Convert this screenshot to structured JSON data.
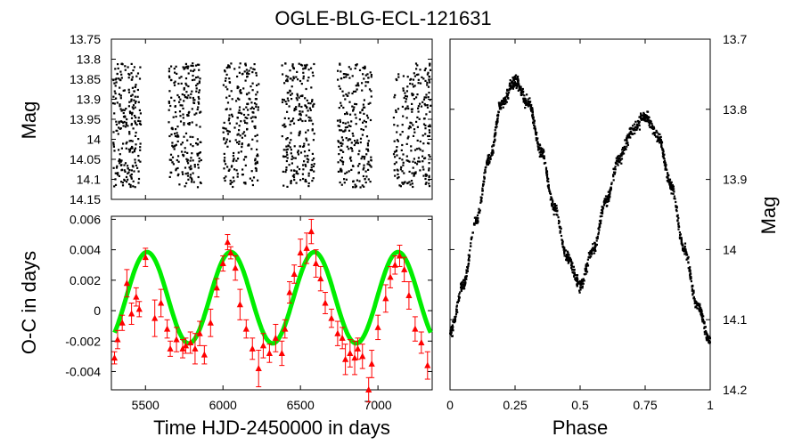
{
  "chart_data": [
    {
      "panel": "top-left",
      "type": "scatter",
      "title": "OGLE-BLG-ECL-121631",
      "xlabel": "",
      "ylabel": "Mag",
      "xlim": [
        5280,
        7350
      ],
      "ylim": [
        14.15,
        13.75
      ],
      "yticks": [
        "13.75",
        "13.8",
        "13.85",
        "13.9",
        "13.95",
        "14",
        "14.05",
        "14.1",
        "14.15"
      ],
      "observing_seasons": [
        [
          5290,
          5470
        ],
        [
          5650,
          5860
        ],
        [
          6000,
          6230
        ],
        [
          6380,
          6590
        ],
        [
          6740,
          6960
        ],
        [
          7100,
          7340
        ]
      ],
      "mag_range": [
        13.81,
        14.12
      ],
      "series": [
        {
          "name": "photometry",
          "color": "#000000"
        }
      ]
    },
    {
      "panel": "bottom-left",
      "type": "scatter",
      "xlabel": "Time HJD-2450000 in days",
      "ylabel": "O-C in days",
      "xlim": [
        5280,
        7350
      ],
      "ylim": [
        -0.0052,
        0.0062
      ],
      "xticks": [
        "5500",
        "6000",
        "6500",
        "7000"
      ],
      "yticks": [
        "-0.004",
        "-0.002",
        "0",
        "0.002",
        "0.004",
        "0.006"
      ],
      "series": [
        {
          "name": "O-C measurements",
          "color": "#ff0000",
          "marker": "triangle",
          "x": [
            5300,
            5320,
            5350,
            5380,
            5410,
            5440,
            5460,
            5500,
            5560,
            5600,
            5640,
            5660,
            5700,
            5740,
            5760,
            5790,
            5820,
            5850,
            5880,
            5920,
            5960,
            6000,
            6030,
            6050,
            6080,
            6110,
            6150,
            6190,
            6230,
            6260,
            6300,
            6340,
            6380,
            6400,
            6430,
            6460,
            6500,
            6540,
            6570,
            6600,
            6630,
            6660,
            6700,
            6740,
            6770,
            6790,
            6820,
            6850,
            6870,
            6900,
            6940,
            6960,
            7000,
            7050,
            7080,
            7110,
            7140,
            7170,
            7200,
            7240,
            7280,
            7320
          ],
          "y": [
            -0.0031,
            -0.0019,
            -0.0008,
            0.0018,
            -0.0002,
            0.0009,
            0.0001,
            0.0035,
            -0.0005,
            0.0005,
            -0.0012,
            -0.0025,
            -0.0019,
            -0.0025,
            -0.0023,
            -0.0021,
            -0.0025,
            -0.0015,
            -0.0029,
            -0.0008,
            0.0015,
            0.0031,
            0.0045,
            0.0038,
            0.0028,
            0.0004,
            -0.0012,
            -0.0025,
            -0.0038,
            -0.0023,
            -0.0028,
            -0.0018,
            -0.0028,
            -0.0012,
            0.0012,
            0.0024,
            0.0038,
            0.0041,
            0.0052,
            0.0031,
            0.0021,
            0.0005,
            -0.0005,
            -0.0015,
            -0.0018,
            -0.0032,
            -0.0028,
            -0.0031,
            -0.0025,
            -0.003,
            -0.0052,
            -0.0035,
            -0.0011,
            0.0008,
            0.0022,
            0.003,
            0.0036,
            0.0027,
            0.001,
            -0.0012,
            -0.0021,
            -0.0036
          ],
          "err": [
            0.0004,
            0.0006,
            0.0005,
            0.0009,
            0.0007,
            0.0006,
            0.0005,
            0.0006,
            0.0012,
            0.0009,
            0.0006,
            0.0005,
            0.0008,
            0.0006,
            0.0005,
            0.0007,
            0.001,
            0.0008,
            0.0006,
            0.0009,
            0.0006,
            0.0005,
            0.0005,
            0.0004,
            0.0008,
            0.001,
            0.0006,
            0.0007,
            0.0012,
            0.0008,
            0.0006,
            0.0009,
            0.0008,
            0.0006,
            0.0007,
            0.0006,
            0.0009,
            0.001,
            0.0008,
            0.0009,
            0.0008,
            0.0007,
            0.0006,
            0.0008,
            0.0007,
            0.001,
            0.0009,
            0.0011,
            0.0007,
            0.0008,
            0.0008,
            0.0009,
            0.0008,
            0.0009,
            0.0007,
            0.0006,
            0.0007,
            0.0008,
            0.0009,
            0.0008,
            0.0007,
            0.0009
          ]
        },
        {
          "name": "fit",
          "color": "#00ee00",
          "type": "line",
          "model": "sinusoid",
          "offset": 0.00085,
          "amplitude": 0.003,
          "period": 540,
          "peak_time": 5510
        }
      ]
    },
    {
      "panel": "right",
      "type": "scatter",
      "xlabel": "Phase",
      "ylabel": "Mag",
      "xlim": [
        0,
        1
      ],
      "ylim": [
        14.2,
        13.7
      ],
      "xticks": [
        "0",
        "0.25",
        "0.5",
        "0.75",
        "1"
      ],
      "yticks": [
        "13.7",
        "13.8",
        "13.9",
        "14",
        "14.1",
        "14.2"
      ],
      "phase_curve": {
        "phase": [
          0,
          0.05,
          0.1,
          0.15,
          0.2,
          0.25,
          0.3,
          0.35,
          0.4,
          0.45,
          0.5,
          0.55,
          0.6,
          0.65,
          0.7,
          0.75,
          0.8,
          0.85,
          0.9,
          0.95,
          1.0
        ],
        "mag": [
          14.12,
          14.05,
          13.96,
          13.87,
          13.79,
          13.76,
          13.79,
          13.86,
          13.94,
          14.01,
          14.05,
          14.0,
          13.93,
          13.87,
          13.83,
          13.81,
          13.84,
          13.91,
          14.0,
          14.08,
          14.13
        ]
      },
      "series": [
        {
          "name": "folded photometry",
          "color": "#000000"
        }
      ]
    }
  ]
}
